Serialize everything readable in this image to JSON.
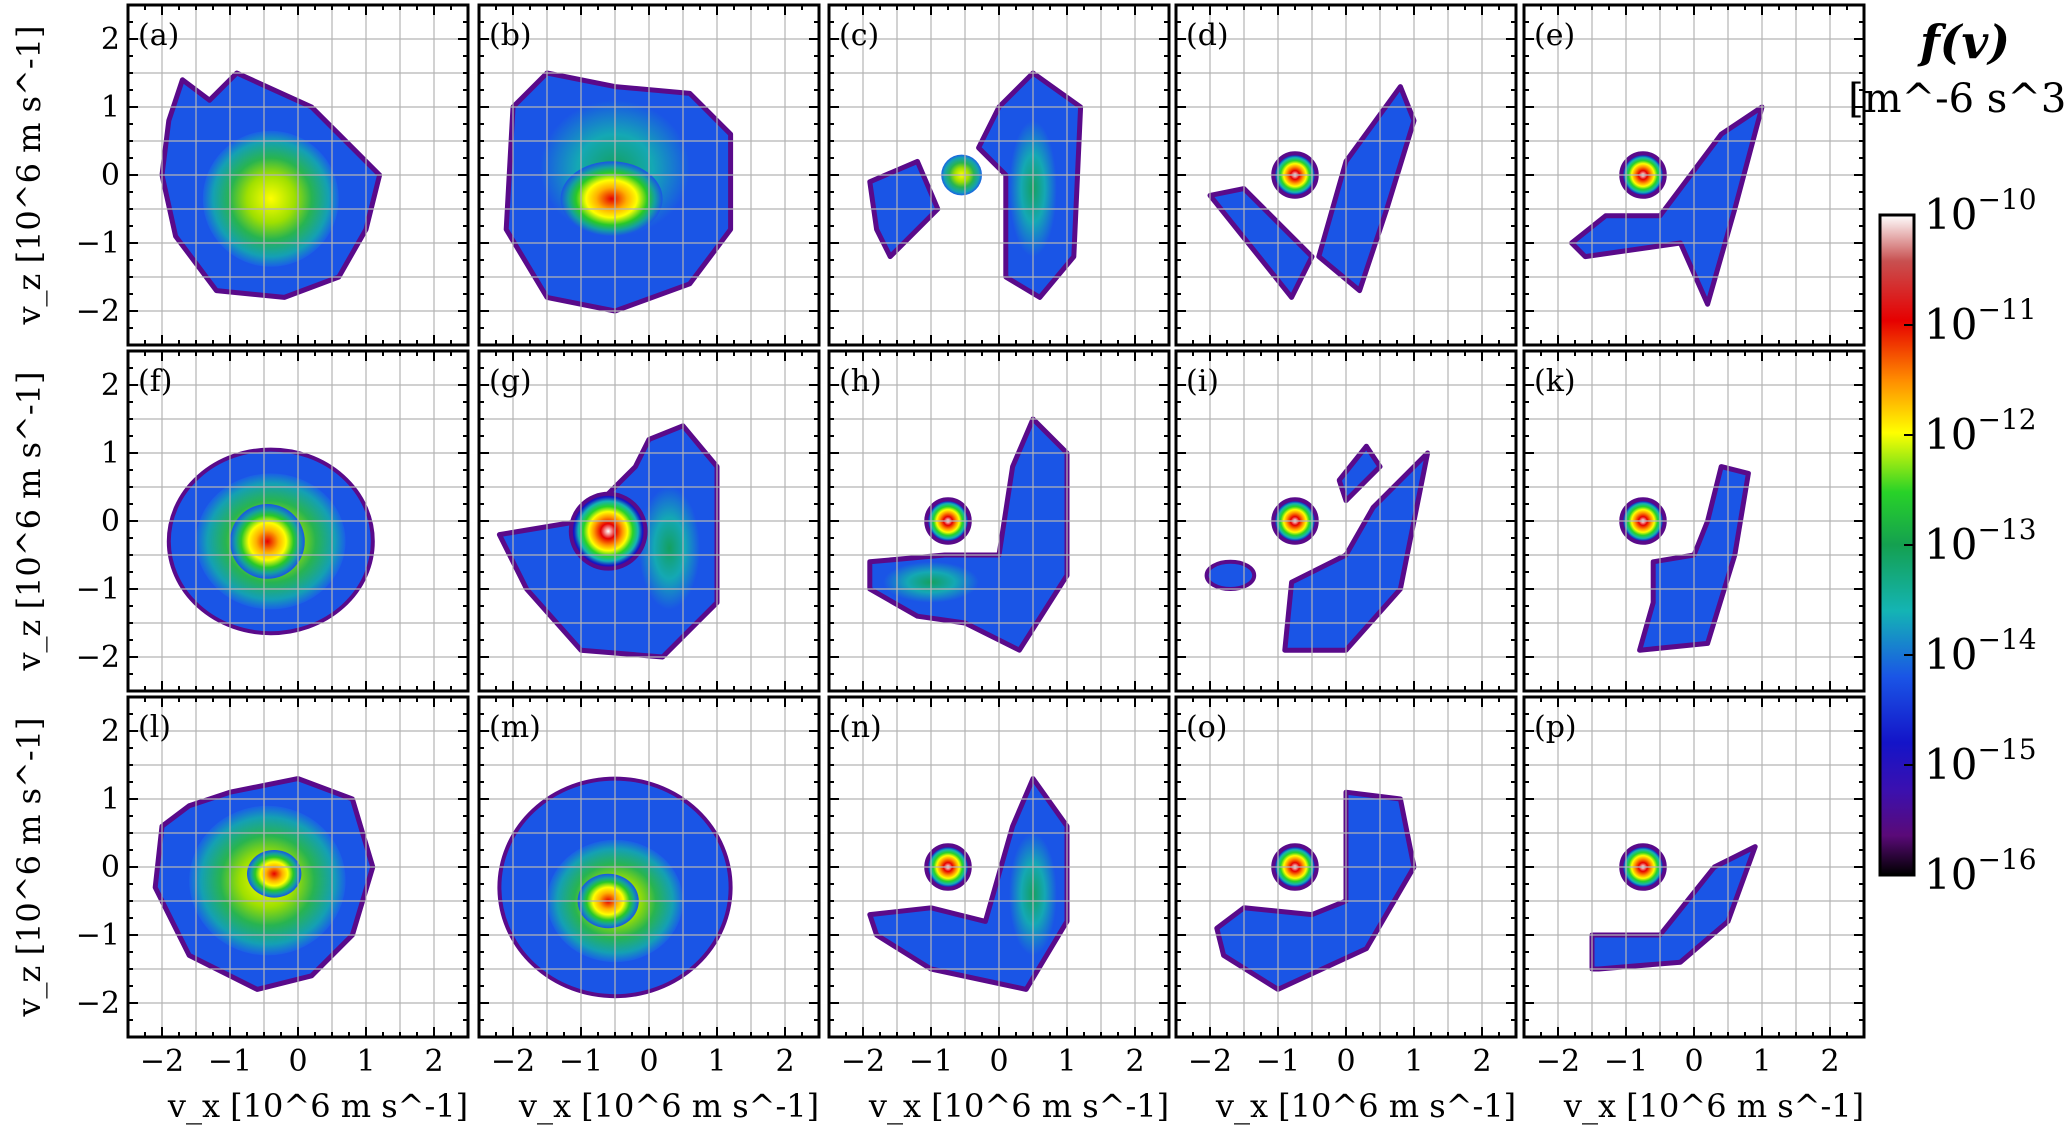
{
  "chart_data": {
    "type": "heatmap",
    "description_of_axes": {
      "xlabel": "v_x [10^6 m s^-1]",
      "ylabel": "v_z [10^6 m s^-1]",
      "xlim": [
        -2.5,
        2.5
      ],
      "ylim": [
        -2.5,
        2.5
      ],
      "x_ticks": [
        "−2",
        "−1",
        "0",
        "1",
        "2"
      ],
      "y_ticks": [
        "2",
        "1",
        "0",
        "−1",
        "−2"
      ],
      "x_tick_values": [
        -2,
        -1,
        0,
        1,
        2
      ],
      "y_tick_values": [
        2,
        1,
        0,
        -1,
        -2
      ],
      "grid": true
    },
    "panels": [
      {
        "label": "(a)",
        "row": 0,
        "col": 0
      },
      {
        "label": "(b)",
        "row": 0,
        "col": 1
      },
      {
        "label": "(c)",
        "row": 0,
        "col": 2
      },
      {
        "label": "(d)",
        "row": 0,
        "col": 3
      },
      {
        "label": "(e)",
        "row": 0,
        "col": 4
      },
      {
        "label": "(f)",
        "row": 1,
        "col": 0
      },
      {
        "label": "(g)",
        "row": 1,
        "col": 1
      },
      {
        "label": "(h)",
        "row": 1,
        "col": 2
      },
      {
        "label": "(i)",
        "row": 1,
        "col": 3
      },
      {
        "label": "(k)",
        "row": 1,
        "col": 4
      },
      {
        "label": "(l)",
        "row": 2,
        "col": 0
      },
      {
        "label": "(m)",
        "row": 2,
        "col": 1
      },
      {
        "label": "(n)",
        "row": 2,
        "col": 2
      },
      {
        "label": "(o)",
        "row": 2,
        "col": 3
      },
      {
        "label": "(p)",
        "row": 2,
        "col": 4
      }
    ],
    "colorbar": {
      "title": "f(v)",
      "unit": "[m^-6 s^3]",
      "scale": "log",
      "range": [
        1e-16,
        1e-10
      ],
      "tick_mantissa": "10",
      "tick_exponents": [
        "−10",
        "−11",
        "−12",
        "−13",
        "−14",
        "−15",
        "−16"
      ],
      "colors": [
        "#000000",
        "#6a0a8a",
        "#1414c8",
        "#1a55e6",
        "#14b4b4",
        "#14a050",
        "#28d228",
        "#ffff00",
        "#ff8c00",
        "#e60000",
        "#ffffff"
      ]
    }
  }
}
